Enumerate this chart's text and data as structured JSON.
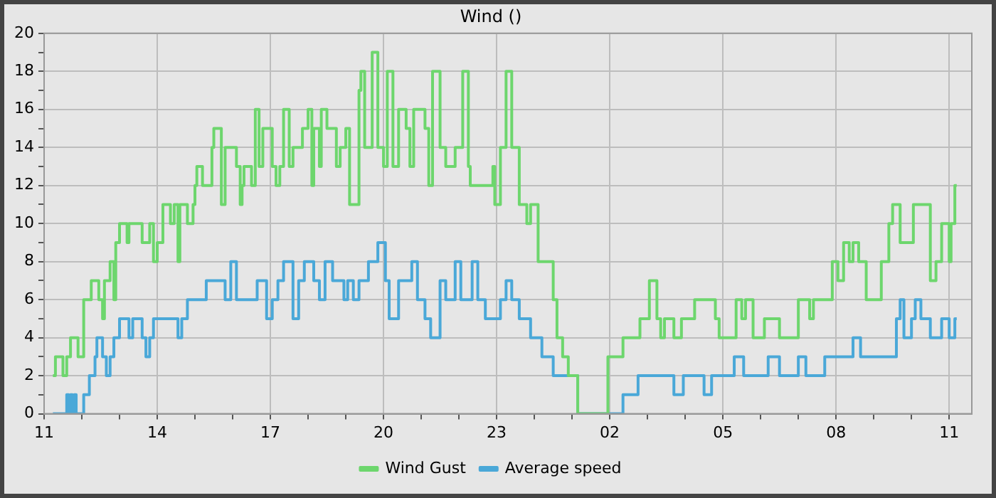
{
  "chart_data": {
    "type": "step",
    "title": "Wind ()",
    "xlim": [
      "--01-01T11:00",
      "--01-02T11:36"
    ],
    "ylim": [
      0,
      20
    ],
    "xticks": [
      {
        "value": "--01-01T11:00",
        "label": "11"
      },
      {
        "value": "--01-01T12:00",
        "label": null
      },
      {
        "value": "--01-01T13:00",
        "label": null
      },
      {
        "value": "--01-01T14:00",
        "label": "14"
      },
      {
        "value": "--01-01T15:00",
        "label": null
      },
      {
        "value": "--01-01T16:00",
        "label": null
      },
      {
        "value": "--01-01T17:00",
        "label": "17"
      },
      {
        "value": "--01-01T18:00",
        "label": null
      },
      {
        "value": "--01-01T19:00",
        "label": null
      },
      {
        "value": "--01-01T20:00",
        "label": "20"
      },
      {
        "value": "--01-01T21:00",
        "label": null
      },
      {
        "value": "--01-01T22:00",
        "label": null
      },
      {
        "value": "--01-01T23:00",
        "label": "23"
      },
      {
        "value": "--01-02T00:00",
        "label": null
      },
      {
        "value": "--01-02T01:00",
        "label": null
      },
      {
        "value": "--01-02T02:00",
        "label": "02"
      },
      {
        "value": "--01-02T03:00",
        "label": null
      },
      {
        "value": "--01-02T04:00",
        "label": null
      },
      {
        "value": "--01-02T05:00",
        "label": "05"
      },
      {
        "value": "--01-02T06:00",
        "label": null
      },
      {
        "value": "--01-02T07:00",
        "label": null
      },
      {
        "value": "--01-02T08:00",
        "label": "08"
      },
      {
        "value": "--01-02T09:00",
        "label": null
      },
      {
        "value": "--01-02T10:00",
        "label": null
      },
      {
        "value": "--01-02T11:00",
        "label": "11"
      }
    ],
    "yticks": [
      0,
      {
        "value": 1,
        "label": null
      },
      2,
      {
        "value": 3,
        "label": null
      },
      4,
      {
        "value": 5,
        "label": null
      },
      6,
      {
        "value": 7,
        "label": null
      },
      8,
      {
        "value": 9,
        "label": null
      },
      10,
      {
        "value": 11,
        "label": null
      },
      12,
      {
        "value": 13,
        "label": null
      },
      14,
      {
        "value": 15,
        "label": null
      },
      16,
      {
        "value": 17,
        "label": null
      },
      18,
      {
        "value": 19,
        "label": null
      },
      20
    ],
    "grid": true,
    "legend": "bottom",
    "marker": "none",
    "series": [
      {
        "name": "Wind Gust",
        "color": "#6dd66d",
        "x": [
          "--01-01T11:14",
          "--01-01T11:18",
          "--01-01T11:30",
          "--01-01T11:36",
          "--01-01T11:42",
          "--01-01T11:54",
          "--01-01T12:03",
          "--01-01T12:15",
          "--01-01T12:27",
          "--01-01T12:33",
          "--01-01T12:36",
          "--01-01T12:45",
          "--01-01T12:51",
          "--01-01T12:54",
          "--01-01T13:00",
          "--01-01T13:12",
          "--01-01T13:15",
          "--01-01T13:36",
          "--01-01T13:48",
          "--01-01T13:54",
          "--01-01T14:00",
          "--01-01T14:09",
          "--01-01T14:21",
          "--01-01T14:27",
          "--01-01T14:33",
          "--01-01T14:36",
          "--01-01T14:48",
          "--01-01T14:57",
          "--01-01T15:00",
          "--01-01T15:03",
          "--01-01T15:12",
          "--01-01T15:27",
          "--01-01T15:30",
          "--01-01T15:42",
          "--01-01T15:48",
          "--01-01T16:06",
          "--01-01T16:12",
          "--01-01T16:15",
          "--01-01T16:18",
          "--01-01T16:30",
          "--01-01T16:36",
          "--01-01T16:42",
          "--01-01T16:48",
          "--01-01T17:03",
          "--01-01T17:09",
          "--01-01T17:15",
          "--01-01T17:21",
          "--01-01T17:30",
          "--01-01T17:36",
          "--01-01T17:51",
          "--01-01T18:00",
          "--01-01T18:06",
          "--01-01T18:09",
          "--01-01T18:18",
          "--01-01T18:21",
          "--01-01T18:30",
          "--01-01T18:45",
          "--01-01T18:51",
          "--01-01T19:00",
          "--01-01T19:06",
          "--01-01T19:21",
          "--01-01T19:24",
          "--01-01T19:30",
          "--01-01T19:42",
          "--01-01T19:51",
          "--01-01T20:00",
          "--01-01T20:06",
          "--01-01T20:15",
          "--01-01T20:24",
          "--01-01T20:36",
          "--01-01T20:42",
          "--01-01T20:48",
          "--01-01T21:06",
          "--01-01T21:12",
          "--01-01T21:18",
          "--01-01T21:30",
          "--01-01T21:39",
          "--01-01T21:54",
          "--01-01T22:06",
          "--01-01T22:15",
          "--01-01T22:18",
          "--01-01T22:54",
          "--01-01T22:57",
          "--01-01T23:06",
          "--01-01T23:15",
          "--01-01T23:24",
          "--01-01T23:36",
          "--01-01T23:48",
          "--01-01T23:54",
          "--01-02T00:06",
          "--01-02T00:30",
          "--01-02T00:36",
          "--01-02T00:45",
          "--01-02T00:54",
          "--01-02T01:09",
          "--01-02T01:57",
          "--01-02T02:21",
          "--01-02T02:48",
          "--01-02T03:03",
          "--01-02T03:15",
          "--01-02T03:21",
          "--01-02T03:27",
          "--01-02T03:42",
          "--01-02T03:54",
          "--01-02T04:15",
          "--01-02T04:48",
          "--01-02T04:54",
          "--01-02T05:21",
          "--01-02T05:30",
          "--01-02T05:36",
          "--01-02T05:48",
          "--01-02T06:06",
          "--01-02T06:30",
          "--01-02T07:00",
          "--01-02T07:18",
          "--01-02T07:24",
          "--01-02T07:54",
          "--01-02T08:03",
          "--01-02T08:12",
          "--01-02T08:21",
          "--01-02T08:27",
          "--01-02T08:36",
          "--01-02T08:48",
          "--01-02T09:12",
          "--01-02T09:24",
          "--01-02T09:30",
          "--01-02T09:42",
          "--01-02T10:03",
          "--01-02T10:30",
          "--01-02T10:39",
          "--01-02T10:48",
          "--01-02T11:00",
          "--01-02T11:03",
          "--01-02T11:09",
          "--01-02T11:12"
        ],
        "values": [
          2,
          3,
          2,
          3,
          4,
          3,
          6,
          7,
          6,
          5,
          7,
          8,
          6,
          9,
          10,
          9,
          10,
          9,
          10,
          8,
          9,
          11,
          10,
          11,
          8,
          11,
          10,
          11,
          12,
          13,
          12,
          14,
          15,
          11,
          14,
          13,
          11,
          12,
          13,
          12,
          16,
          13,
          15,
          13,
          12,
          13,
          16,
          13,
          14,
          15,
          16,
          12,
          15,
          13,
          16,
          15,
          13,
          14,
          15,
          11,
          17,
          18,
          14,
          19,
          14,
          13,
          18,
          13,
          16,
          15,
          13,
          16,
          15,
          12,
          18,
          14,
          13,
          14,
          18,
          13,
          12,
          13,
          11,
          14,
          18,
          14,
          11,
          10,
          11,
          8,
          6,
          4,
          3,
          2,
          0,
          3,
          4,
          5,
          7,
          5,
          4,
          5,
          4,
          5,
          6,
          5,
          4,
          6,
          5,
          6,
          4,
          5,
          4,
          6,
          5,
          6,
          8,
          7,
          9,
          8,
          9,
          8,
          6,
          8,
          10,
          11,
          9,
          11,
          7,
          8,
          10,
          8,
          10,
          12,
          12
        ]
      },
      {
        "name": "Average speed",
        "color": "#4aa8d8",
        "x": [
          "--01-01T11:14",
          "--01-01T11:36",
          "--01-01T11:39",
          "--01-01T11:42",
          "--01-01T11:45",
          "--01-01T11:48",
          "--01-01T11:51",
          "--01-01T12:03",
          "--01-01T12:12",
          "--01-01T12:21",
          "--01-01T12:24",
          "--01-01T12:33",
          "--01-01T12:39",
          "--01-01T12:45",
          "--01-01T12:51",
          "--01-01T13:00",
          "--01-01T13:15",
          "--01-01T13:21",
          "--01-01T13:36",
          "--01-01T13:42",
          "--01-01T13:48",
          "--01-01T13:54",
          "--01-01T14:33",
          "--01-01T14:39",
          "--01-01T14:48",
          "--01-01T15:18",
          "--01-01T15:48",
          "--01-01T15:57",
          "--01-01T16:06",
          "--01-01T16:39",
          "--01-01T16:54",
          "--01-01T17:03",
          "--01-01T17:12",
          "--01-01T17:21",
          "--01-01T17:36",
          "--01-01T17:45",
          "--01-01T17:54",
          "--01-01T18:09",
          "--01-01T18:18",
          "--01-01T18:27",
          "--01-01T18:39",
          "--01-01T18:57",
          "--01-01T19:03",
          "--01-01T19:12",
          "--01-01T19:21",
          "--01-01T19:36",
          "--01-01T19:51",
          "--01-01T20:03",
          "--01-01T20:09",
          "--01-01T20:24",
          "--01-01T20:45",
          "--01-01T20:54",
          "--01-01T21:06",
          "--01-01T21:15",
          "--01-01T21:30",
          "--01-01T21:39",
          "--01-01T21:54",
          "--01-01T22:03",
          "--01-01T22:21",
          "--01-01T22:30",
          "--01-01T22:42",
          "--01-01T23:06",
          "--01-01T23:15",
          "--01-01T23:24",
          "--01-01T23:36",
          "--01-01T23:54",
          "--01-02T00:12",
          "--01-02T00:30",
          "--01-02T01:09",
          "--01-02T02:21",
          "--01-02T02:45",
          "--01-02T03:42",
          "--01-02T03:57",
          "--01-02T04:30",
          "--01-02T04:42",
          "--01-02T05:18",
          "--01-02T05:33",
          "--01-02T06:12",
          "--01-02T06:30",
          "--01-02T07:00",
          "--01-02T07:12",
          "--01-02T07:42",
          "--01-02T08:27",
          "--01-02T08:39",
          "--01-02T09:36",
          "--01-02T09:42",
          "--01-02T09:48",
          "--01-02T10:00",
          "--01-02T10:06",
          "--01-02T10:15",
          "--01-02T10:30",
          "--01-02T10:48",
          "--01-02T11:00",
          "--01-02T11:09",
          "--01-02T11:12"
        ],
        "values": [
          0,
          1,
          0,
          1,
          0,
          1,
          0,
          1,
          2,
          3,
          4,
          3,
          2,
          3,
          4,
          5,
          4,
          5,
          4,
          3,
          4,
          5,
          4,
          5,
          6,
          7,
          6,
          8,
          6,
          7,
          5,
          6,
          7,
          8,
          5,
          7,
          8,
          7,
          6,
          8,
          7,
          6,
          7,
          6,
          7,
          8,
          9,
          7,
          5,
          7,
          8,
          6,
          5,
          4,
          7,
          6,
          8,
          6,
          8,
          6,
          5,
          6,
          7,
          6,
          5,
          4,
          3,
          2,
          0,
          1,
          2,
          1,
          2,
          1,
          2,
          3,
          2,
          3,
          2,
          3,
          2,
          3,
          4,
          3,
          5,
          6,
          4,
          5,
          6,
          5,
          4,
          5,
          4,
          5,
          5
        ]
      }
    ]
  }
}
